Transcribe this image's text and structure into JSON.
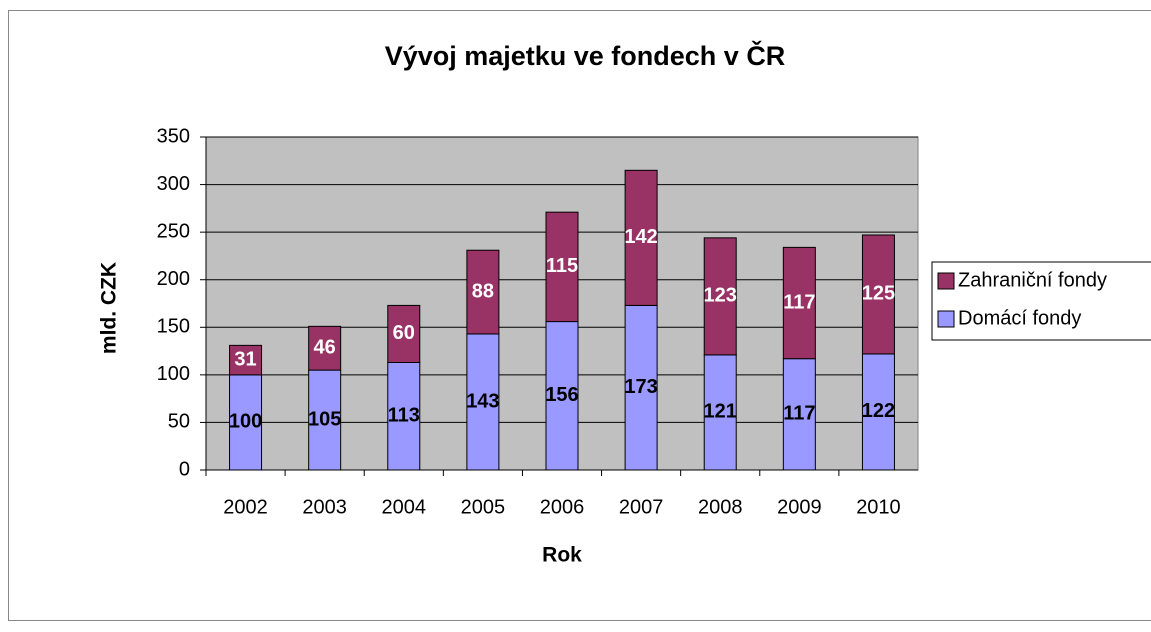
{
  "chart_data": {
    "type": "stacked_bar",
    "title": "Vývoj majetku ve fondech v ČR",
    "x_label": "Rok",
    "y_label": "mld. CZK",
    "categories": [
      "2002",
      "2003",
      "2004",
      "2005",
      "2006",
      "2007",
      "2008",
      "2009",
      "2010"
    ],
    "series": [
      {
        "name": "Domácí fondy",
        "color": "#9999ff",
        "values": [
          100,
          105,
          113,
          143,
          156,
          173,
          121,
          117,
          122
        ]
      },
      {
        "name": "Zahraniční fondy",
        "color": "#993366",
        "values": [
          31,
          46,
          60,
          88,
          115,
          142,
          123,
          117,
          125
        ]
      }
    ],
    "ylim": [
      0,
      350
    ],
    "yticks": [
      0,
      50,
      100,
      150,
      200,
      250,
      300,
      350
    ],
    "grid": true,
    "legend": "right"
  }
}
